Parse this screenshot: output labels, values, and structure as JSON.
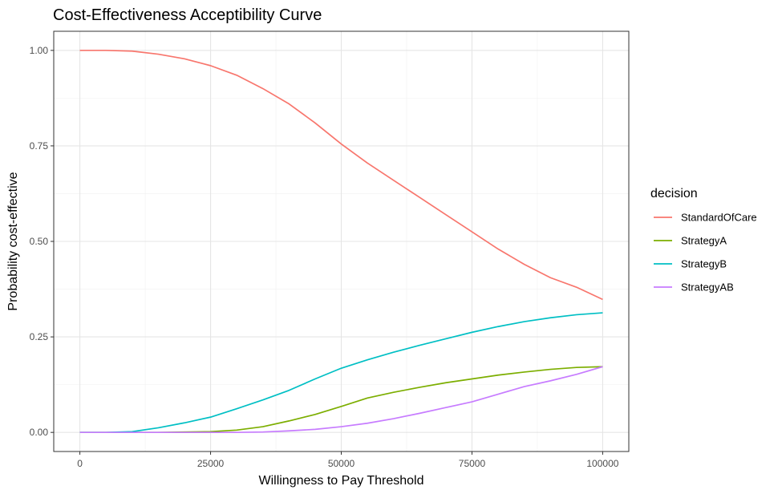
{
  "chart_data": {
    "type": "line",
    "title": "Cost-Effectiveness Acceptibility Curve",
    "xlabel": "Willingness to Pay Threshold",
    "ylabel": "Probability cost-effective",
    "xlim": [
      -5000,
      105000
    ],
    "ylim": [
      -0.05,
      1.05
    ],
    "xticks": [
      0,
      25000,
      50000,
      75000,
      100000
    ],
    "xtick_labels": [
      "0",
      "25000",
      "50000",
      "75000",
      "100000"
    ],
    "yticks": [
      0,
      0.25,
      0.5,
      0.75,
      1.0
    ],
    "ytick_labels": [
      "0.00",
      "0.25",
      "0.50",
      "0.75",
      "1.00"
    ],
    "grid": true,
    "legend": {
      "title": "decision",
      "position": "right"
    },
    "x": [
      0,
      5000,
      10000,
      15000,
      20000,
      25000,
      30000,
      35000,
      40000,
      45000,
      50000,
      55000,
      60000,
      65000,
      70000,
      75000,
      80000,
      85000,
      90000,
      95000,
      100000
    ],
    "series": [
      {
        "name": "StandardOfCare",
        "color": "#F8766D",
        "values": [
          1.0,
          1.0,
          0.998,
          0.99,
          0.978,
          0.96,
          0.935,
          0.9,
          0.86,
          0.81,
          0.755,
          0.705,
          0.66,
          0.615,
          0.57,
          0.525,
          0.48,
          0.44,
          0.405,
          0.38,
          0.348
        ]
      },
      {
        "name": "StrategyA",
        "color": "#7CAE00",
        "values": [
          0.0,
          0.0,
          0.0,
          0.0,
          0.001,
          0.002,
          0.006,
          0.015,
          0.03,
          0.047,
          0.068,
          0.09,
          0.105,
          0.118,
          0.13,
          0.14,
          0.15,
          0.158,
          0.165,
          0.17,
          0.172
        ]
      },
      {
        "name": "StrategyB",
        "color": "#00BFC4",
        "values": [
          0.0,
          0.0,
          0.002,
          0.012,
          0.025,
          0.04,
          0.062,
          0.085,
          0.11,
          0.14,
          0.168,
          0.19,
          0.21,
          0.228,
          0.245,
          0.262,
          0.277,
          0.29,
          0.3,
          0.308,
          0.313
        ]
      },
      {
        "name": "StrategyAB",
        "color": "#C77CFF",
        "values": [
          0.0,
          0.0,
          0.0,
          0.0,
          0.0,
          0.0,
          0.0,
          0.001,
          0.004,
          0.008,
          0.015,
          0.024,
          0.036,
          0.05,
          0.065,
          0.08,
          0.1,
          0.12,
          0.135,
          0.152,
          0.172
        ]
      }
    ]
  }
}
